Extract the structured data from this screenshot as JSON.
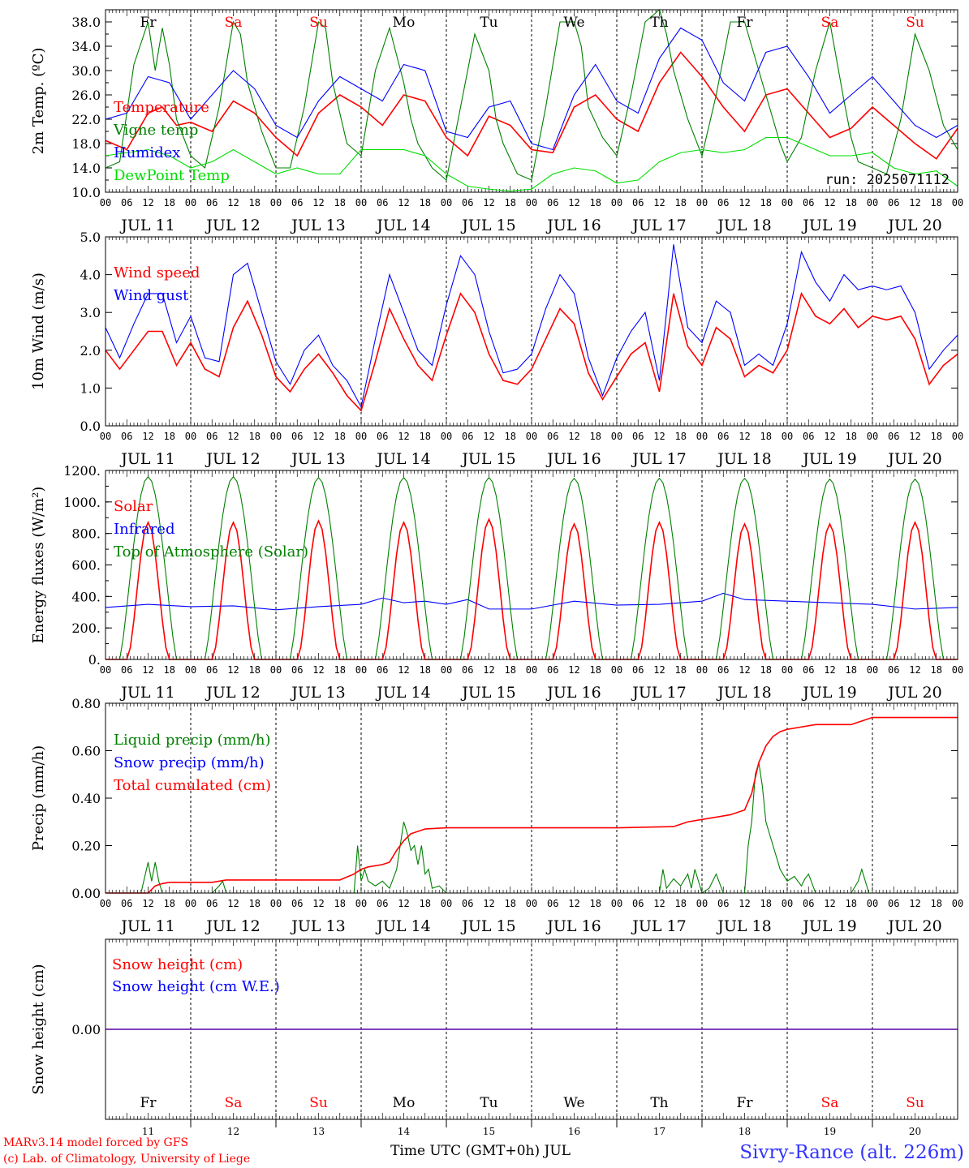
{
  "days": [
    "Fr",
    "Sa",
    "Su",
    "Mo",
    "Tu",
    "We",
    "Th",
    "Fr",
    "Sa",
    "Su"
  ],
  "weekend_flags": [
    false,
    true,
    true,
    false,
    false,
    false,
    false,
    false,
    true,
    true
  ],
  "date_labels": [
    "JUL 11",
    "JUL 12",
    "JUL 13",
    "JUL 14",
    "JUL 15",
    "JUL 16",
    "JUL 17",
    "JUL 18",
    "JUL 19",
    "JUL 20"
  ],
  "hour_labels": [
    "00",
    "06",
    "12",
    "18"
  ],
  "day_numbers": [
    "11",
    "12",
    "13",
    "14",
    "15",
    "16",
    "17",
    "18",
    "19",
    "20"
  ],
  "footer": {
    "model": "MARv3.14 model forced by GFS",
    "lab": "(c) Lab. of Climatology, University of Liege",
    "time_axis": "Time UTC (GMT+0h) JUL",
    "station": "Sivry-Rance (alt. 226m)"
  },
  "colors": {
    "red": "#ff0000",
    "green": "#008000",
    "blue": "#0000ff",
    "lightgreen": "#00dd00",
    "weekend": "#ff0000",
    "station": "#3333ff"
  },
  "chart_data": [
    {
      "id": "temp",
      "type": "line",
      "ylabel": "2m Temp. (ºC)",
      "ylim": [
        10,
        40
      ],
      "yticks": [
        "10.0",
        "14.0",
        "18.0",
        "22.0",
        "26.0",
        "30.0",
        "34.0",
        "38.0"
      ],
      "run_label": "run: 2025071112",
      "x_unit": "hours since JUL 11 00 UTC",
      "series": [
        {
          "name": "Temperature",
          "color": "red",
          "x": [
            0,
            6,
            12,
            16,
            20,
            24,
            30,
            36,
            42,
            48,
            54,
            60,
            66,
            72,
            78,
            84,
            90,
            96,
            102,
            108,
            114,
            120,
            126,
            132,
            138,
            144,
            150,
            156,
            162,
            168,
            174,
            180,
            186,
            192,
            198,
            204,
            210,
            216,
            222,
            228,
            234,
            240
          ],
          "y": [
            18.5,
            17,
            23,
            24,
            21,
            21.5,
            20,
            25,
            23,
            19,
            16,
            23,
            26,
            24,
            21,
            26,
            25,
            19,
            16,
            22.5,
            21,
            17,
            16.5,
            24,
            26,
            22,
            20,
            28,
            33,
            29,
            24,
            20,
            26,
            27,
            23,
            19,
            20.5,
            24,
            21,
            18,
            15.5,
            20.5
          ]
        },
        {
          "name": "Vigne temp",
          "color": "green",
          "x": [
            0,
            4,
            8,
            12,
            14,
            16,
            18,
            20,
            24,
            28,
            32,
            36,
            38,
            40,
            44,
            48,
            52,
            56,
            60,
            62,
            64,
            68,
            72,
            76,
            80,
            84,
            86,
            88,
            92,
            96,
            100,
            104,
            108,
            110,
            112,
            116,
            120,
            124,
            128,
            132,
            134,
            136,
            140,
            144,
            148,
            152,
            156,
            158,
            160,
            164,
            168,
            172,
            176,
            180,
            184,
            188,
            190,
            192,
            196,
            200,
            204,
            208,
            210,
            212,
            216,
            220,
            224,
            228,
            232,
            236,
            240
          ],
          "y": [
            14,
            15,
            31,
            38,
            30,
            37,
            31,
            22,
            16,
            14,
            24,
            38,
            36,
            28,
            20,
            14,
            14,
            24,
            38,
            37,
            28,
            18,
            16,
            30,
            37,
            28,
            22,
            18,
            14,
            12,
            24,
            36,
            30,
            22,
            18,
            13,
            12,
            24,
            38,
            38,
            34,
            24,
            19,
            16,
            26,
            38,
            40,
            36,
            30,
            22,
            16,
            26,
            38,
            38,
            30,
            22,
            18,
            15,
            19,
            30,
            38,
            25,
            19,
            15,
            14,
            13,
            22,
            36,
            30,
            21,
            17
          ]
        },
        {
          "name": "Humidex",
          "color": "blue",
          "x": [
            0,
            6,
            12,
            18,
            24,
            30,
            36,
            42,
            48,
            54,
            60,
            66,
            72,
            78,
            84,
            90,
            96,
            102,
            108,
            114,
            120,
            126,
            132,
            138,
            144,
            150,
            156,
            162,
            168,
            174,
            180,
            186,
            192,
            198,
            204,
            210,
            216,
            222,
            228,
            234,
            240
          ],
          "y": [
            22,
            23,
            29,
            28,
            22,
            26,
            30,
            27,
            21,
            19,
            25,
            29,
            27,
            25,
            31,
            30,
            20,
            19,
            24,
            25,
            18,
            17,
            26,
            31,
            25,
            23,
            32,
            37,
            35,
            28,
            25,
            33,
            34,
            29,
            23,
            26,
            29,
            25,
            21,
            19,
            21
          ]
        },
        {
          "name": "DewPoint Temp",
          "color": "lightgreen",
          "x": [
            0,
            6,
            12,
            18,
            24,
            30,
            36,
            42,
            48,
            54,
            60,
            66,
            72,
            78,
            84,
            90,
            96,
            102,
            108,
            114,
            120,
            126,
            132,
            138,
            144,
            150,
            156,
            162,
            168,
            174,
            180,
            186,
            192,
            198,
            204,
            210,
            216,
            222,
            228,
            234,
            240
          ],
          "y": [
            16,
            16.5,
            17,
            16,
            14,
            15,
            17,
            15,
            13,
            14,
            13,
            13,
            17,
            17,
            17,
            16,
            13,
            11,
            10.5,
            10.2,
            10.5,
            13,
            14,
            13.5,
            11.5,
            12,
            15,
            16.5,
            17,
            16.5,
            17,
            19,
            19,
            17.5,
            16,
            16,
            16.5,
            14,
            13,
            13.5,
            11
          ]
        }
      ]
    },
    {
      "id": "wind",
      "type": "line",
      "ylabel": "10m Wind (m/s)",
      "ylim": [
        0,
        5
      ],
      "yticks": [
        "0.0",
        "1.0",
        "2.0",
        "3.0",
        "4.0",
        "5.0"
      ],
      "series": [
        {
          "name": "Wind speed",
          "color": "red",
          "x": [
            0,
            4,
            8,
            12,
            16,
            20,
            24,
            28,
            32,
            36,
            40,
            44,
            48,
            52,
            56,
            60,
            64,
            68,
            72,
            76,
            80,
            84,
            88,
            92,
            96,
            100,
            104,
            108,
            112,
            116,
            120,
            124,
            128,
            132,
            136,
            140,
            144,
            148,
            152,
            156,
            160,
            164,
            168,
            172,
            176,
            180,
            184,
            188,
            192,
            196,
            200,
            204,
            208,
            212,
            216,
            220,
            224,
            228,
            232,
            236,
            240
          ],
          "y": [
            2.0,
            1.5,
            2.0,
            2.5,
            2.5,
            1.6,
            2.2,
            1.5,
            1.3,
            2.6,
            3.3,
            2.4,
            1.3,
            0.9,
            1.5,
            1.9,
            1.4,
            0.8,
            0.4,
            1.7,
            3.1,
            2.3,
            1.6,
            1.2,
            2.4,
            3.5,
            3.0,
            1.9,
            1.2,
            1.1,
            1.5,
            2.3,
            3.1,
            2.7,
            1.4,
            0.7,
            1.3,
            1.9,
            2.2,
            0.9,
            3.5,
            2.1,
            1.6,
            2.6,
            2.3,
            1.3,
            1.6,
            1.4,
            2.0,
            3.5,
            2.9,
            2.7,
            3.1,
            2.6,
            2.9,
            2.8,
            2.9,
            2.3,
            1.1,
            1.6,
            1.9
          ]
        },
        {
          "name": "Wind gust",
          "color": "blue",
          "x": [
            0,
            4,
            8,
            12,
            16,
            20,
            24,
            28,
            32,
            36,
            40,
            44,
            48,
            52,
            56,
            60,
            64,
            68,
            72,
            76,
            80,
            84,
            88,
            92,
            96,
            100,
            104,
            108,
            112,
            116,
            120,
            124,
            128,
            132,
            136,
            140,
            144,
            148,
            152,
            156,
            160,
            164,
            168,
            172,
            176,
            180,
            184,
            188,
            192,
            196,
            200,
            204,
            208,
            212,
            216,
            220,
            224,
            228,
            232,
            236,
            240
          ],
          "y": [
            2.6,
            1.8,
            2.7,
            3.5,
            3.5,
            2.2,
            2.9,
            1.8,
            1.7,
            4.0,
            4.3,
            3.0,
            1.7,
            1.1,
            2.0,
            2.4,
            1.6,
            1.2,
            0.5,
            2.3,
            4.0,
            3.0,
            2.0,
            1.6,
            3.2,
            4.5,
            4.0,
            2.5,
            1.4,
            1.5,
            1.9,
            3.1,
            4.0,
            3.5,
            1.8,
            0.8,
            1.8,
            2.5,
            3.0,
            1.2,
            4.8,
            2.6,
            2.2,
            3.3,
            3.0,
            1.6,
            1.9,
            1.6,
            2.7,
            4.6,
            3.8,
            3.3,
            4.0,
            3.6,
            3.7,
            3.6,
            3.7,
            3.0,
            1.5,
            2.0,
            2.4
          ]
        }
      ]
    },
    {
      "id": "energy",
      "type": "line",
      "ylabel": "Energy fluxes (W/m²)",
      "ylim": [
        0,
        1200
      ],
      "yticks": [
        "0.",
        "200.",
        "400.",
        "600.",
        "800.",
        "1000.",
        "1200."
      ],
      "series": [
        {
          "name": "Solar",
          "color": "red",
          "daily_peak": [
            870,
            870,
            880,
            870,
            890,
            860,
            870,
            860,
            860,
            870
          ]
        },
        {
          "name": "Infrared",
          "color": "blue",
          "x": [
            0,
            12,
            24,
            36,
            48,
            60,
            72,
            78,
            84,
            90,
            96,
            102,
            108,
            120,
            132,
            144,
            156,
            168,
            174,
            180,
            192,
            204,
            216,
            228,
            240
          ],
          "y": [
            330,
            350,
            335,
            340,
            315,
            335,
            350,
            390,
            360,
            370,
            350,
            380,
            320,
            320,
            370,
            345,
            350,
            370,
            420,
            380,
            370,
            360,
            350,
            320,
            330
          ]
        },
        {
          "name": "Top of Atmosphere (Solar)",
          "color": "green",
          "daily_peak": [
            1160,
            1160,
            1155,
            1155,
            1155,
            1150,
            1150,
            1150,
            1145,
            1145
          ]
        }
      ]
    },
    {
      "id": "precip",
      "type": "line",
      "ylabel": "Precip (mm/h)",
      "ylim": [
        0,
        0.8
      ],
      "yticks": [
        "0.00",
        "0.20",
        "0.40",
        "0.60",
        "0.80"
      ],
      "series": [
        {
          "name": "Liquid precip (mm/h)",
          "color": "green",
          "x": [
            0,
            10,
            12,
            13,
            14,
            15,
            16,
            17,
            18,
            30,
            32,
            33,
            34,
            36,
            70,
            71,
            72,
            73,
            74,
            76,
            78,
            80,
            82,
            84,
            85,
            86,
            87,
            88,
            89,
            90,
            91,
            92,
            94,
            96,
            150,
            156,
            157,
            158,
            160,
            162,
            164,
            165,
            166,
            167,
            168,
            170,
            172,
            174,
            176,
            180,
            181,
            182,
            183,
            184,
            185,
            186,
            188,
            190,
            192,
            194,
            196,
            197,
            198,
            200,
            210,
            212,
            213,
            214,
            215,
            216,
            220,
            240
          ],
          "y": [
            0,
            0,
            0.13,
            0.05,
            0.13,
            0.05,
            0,
            0,
            0,
            0,
            0.03,
            0.05,
            0,
            0,
            0,
            0.2,
            0.05,
            0.1,
            0.05,
            0.03,
            0.05,
            0.02,
            0.1,
            0.3,
            0.25,
            0.18,
            0.2,
            0.12,
            0.2,
            0.08,
            0.1,
            0.02,
            0.03,
            0,
            0,
            0,
            0.1,
            0.02,
            0.06,
            0.03,
            0.08,
            0.02,
            0.1,
            0.05,
            0,
            0.02,
            0.08,
            0,
            0,
            0,
            0.2,
            0.3,
            0.5,
            0.55,
            0.45,
            0.3,
            0.2,
            0.1,
            0.05,
            0.07,
            0.03,
            0.06,
            0.08,
            0,
            0,
            0.05,
            0.1,
            0.05,
            0,
            0,
            0,
            0
          ]
        },
        {
          "name": "Snow precip (mm/h)",
          "color": "blue",
          "x": [
            0,
            240
          ],
          "y": [
            0,
            0
          ]
        },
        {
          "name": "Total cumulated (cm)",
          "color": "red",
          "x": [
            0,
            12,
            14,
            16,
            18,
            30,
            34,
            36,
            48,
            66,
            70,
            72,
            74,
            78,
            80,
            82,
            84,
            86,
            88,
            90,
            96,
            120,
            144,
            160,
            164,
            168,
            176,
            180,
            182,
            184,
            186,
            188,
            190,
            192,
            196,
            200,
            210,
            216,
            240
          ],
          "y": [
            0,
            0,
            0.03,
            0.04,
            0.045,
            0.045,
            0.055,
            0.055,
            0.055,
            0.055,
            0.08,
            0.1,
            0.11,
            0.12,
            0.13,
            0.18,
            0.22,
            0.25,
            0.26,
            0.27,
            0.275,
            0.275,
            0.275,
            0.28,
            0.3,
            0.31,
            0.33,
            0.35,
            0.42,
            0.55,
            0.62,
            0.66,
            0.68,
            0.69,
            0.7,
            0.71,
            0.71,
            0.74,
            0.74
          ]
        }
      ]
    },
    {
      "id": "snow",
      "type": "line",
      "ylabel": "Snow height (cm)",
      "ylim": [
        -1,
        1
      ],
      "yticks": [
        "0.00"
      ],
      "series": [
        {
          "name": "Snow height (cm)",
          "color": "red",
          "x": [
            0,
            240
          ],
          "y": [
            0,
            0
          ]
        },
        {
          "name": "Snow height (cm W.E.)",
          "color": "blue",
          "x": [
            0,
            240
          ],
          "y": [
            0,
            0
          ]
        }
      ]
    }
  ]
}
